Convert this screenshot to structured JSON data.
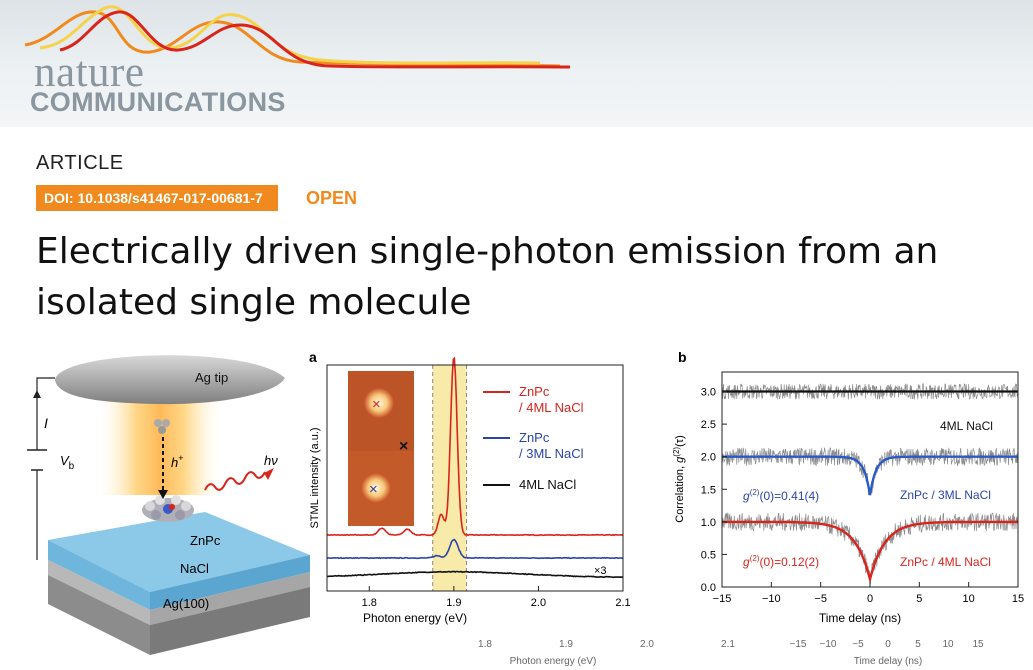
{
  "journal": {
    "logo_line1": "nature",
    "logo_line2": "COMMUNICATIONS"
  },
  "article": {
    "type_label": "ARTICLE",
    "doi": "DOI: 10.1038/s41467-017-00681-7",
    "access": "OPEN",
    "title_line1": "Electrically driven single-photon emission from an",
    "title_line2": "isolated single molecule"
  },
  "colors": {
    "brand_orange": "#f08a1e",
    "red": "#d9241c",
    "blue": "#2a45a8",
    "black": "#111111",
    "highlight": "#f8eaa8"
  },
  "schematic": {
    "labels": {
      "tip": "Ag tip",
      "current": "I",
      "voltage": "V",
      "voltage_sub": "b",
      "hole": "h",
      "hole_sup": "+",
      "photon": "hν",
      "molecule": "ZnPc",
      "insulator": "NaCl",
      "substrate": "Ag(100)"
    }
  },
  "chart_data": [
    {
      "panel": "a",
      "type": "line",
      "xlabel": "Photon energy (eV)",
      "ylabel": "STML intensity (a.u.)",
      "xlim": [
        1.75,
        2.1
      ],
      "x_ticks": [
        "1.8",
        "1.9",
        "2.0",
        "2.1"
      ],
      "highlight_band": [
        1.875,
        1.915
      ],
      "legend": [
        "ZnPc / 4ML NaCl",
        "ZnPc / 3ML NaCl",
        "4ML NaCl"
      ],
      "legend_line1": [
        "ZnPc",
        "ZnPc",
        "4ML NaCl"
      ],
      "legend_line2": [
        "/ 4ML NaCl",
        "/ 3ML NaCl",
        ""
      ],
      "scale_note": "×3",
      "series": [
        {
          "baseline": 0.4,
          "peak_x": 1.9,
          "peak_height": 1.55,
          "peak_width": 0.0055,
          "side_peaks": [
            [
              1.815,
              0.06,
              0.006
            ],
            [
              1.845,
              0.05,
              0.006
            ],
            [
              1.885,
              0.18,
              0.005
            ]
          ]
        },
        {
          "baseline": 0.2,
          "peak_x": 1.9,
          "peak_height": 0.16,
          "peak_width": 0.007,
          "side_peaks": [
            [
              1.88,
              0.02,
              0.006
            ]
          ]
        },
        {
          "baseline": 0.03,
          "broad_center": 1.9,
          "broad_height": 0.05,
          "broad_width": 0.12
        }
      ]
    },
    {
      "panel": "b",
      "type": "line",
      "xlabel": "Time delay (ns)",
      "ylabel": "Correlation, g(2)(τ)",
      "ylabel_parts": [
        "Correlation, ",
        "g",
        "(2)",
        "(τ)"
      ],
      "xlim": [
        -15,
        15
      ],
      "ylim": [
        0,
        3.3
      ],
      "x_ticks": [
        "−15",
        "−10",
        "−5",
        "0",
        "5",
        "10",
        "15"
      ],
      "y_ticks": [
        "0.0",
        "0.5",
        "1.0",
        "1.5",
        "2.0",
        "2.5",
        "3.0"
      ],
      "series": [
        {
          "name": "4ML NaCl",
          "offset": 2.0,
          "g0": 1.0,
          "tau": 1.0
        },
        {
          "name": "ZnPc / 3ML NaCl",
          "offset": 1.0,
          "g0": 0.41,
          "tau": 0.6
        },
        {
          "name": "ZnPc / 4ML NaCl",
          "offset": 0.0,
          "g0": 0.12,
          "tau": 1.5
        }
      ],
      "annotations": [
        {
          "prefix": "g",
          "sup": "(2)",
          "rest": "(0)=0.41(4)"
        },
        {
          "prefix": "g",
          "sup": "(2)",
          "rest": "(0)=0.12(2)"
        }
      ]
    }
  ],
  "ghost_axes": {
    "left_ticks": [
      "1.8",
      "1.9",
      "2.0",
      "2.1"
    ],
    "left_label": "Photon energy (eV)",
    "right_ticks": [
      "−15",
      "−10",
      "−5",
      "0",
      "5",
      "10",
      "15"
    ],
    "right_label": "Time delay (ns)"
  }
}
